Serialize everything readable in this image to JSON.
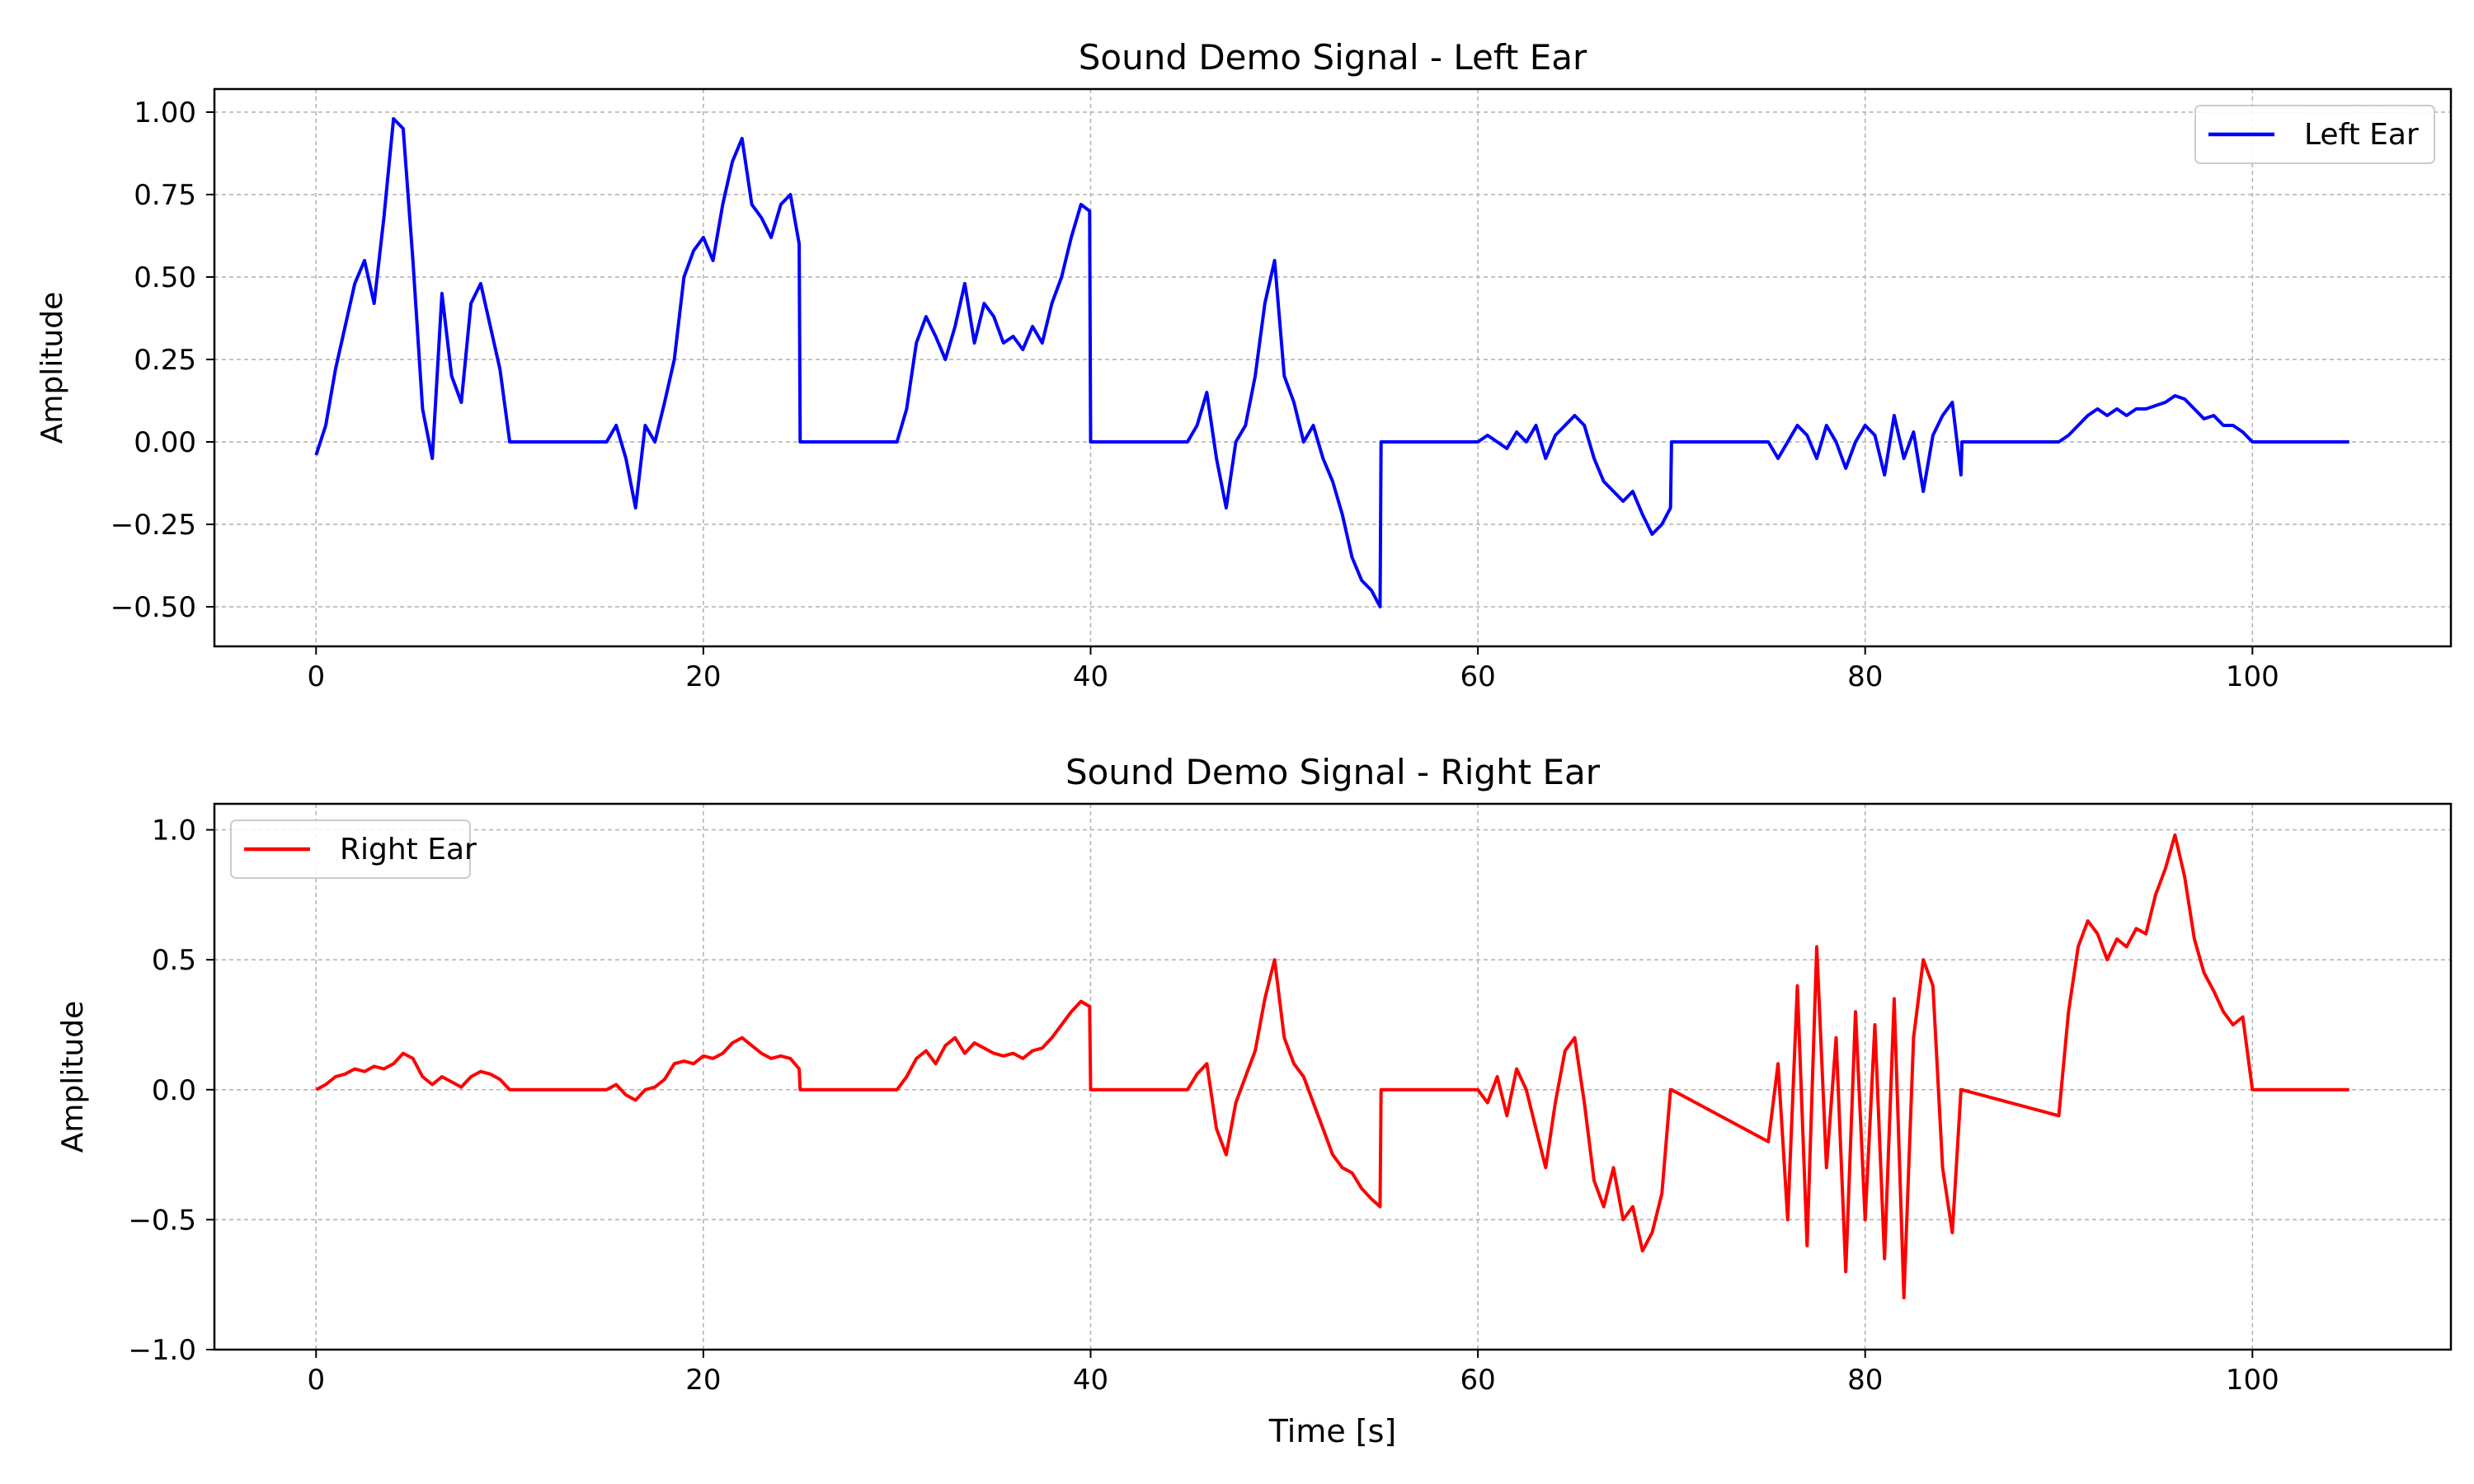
{
  "chart_data": [
    {
      "type": "line",
      "title": "Sound Demo Signal - Left Ear",
      "xlabel": "",
      "ylabel": "Amplitude",
      "xlim": [
        -5.25,
        110.25
      ],
      "ylim": [
        -0.62,
        1.07
      ],
      "xticks": [
        0,
        20,
        40,
        60,
        80,
        100
      ],
      "xtick_labels": [
        "0",
        "20",
        "40",
        "60",
        "80",
        "100"
      ],
      "yticks": [
        -0.5,
        -0.25,
        0.0,
        0.25,
        0.5,
        0.75,
        1.0
      ],
      "ytick_labels": [
        "−0.50",
        "−0.25",
        "0.00",
        "0.25",
        "0.50",
        "0.75",
        "1.00"
      ],
      "grid": true,
      "legend_position": "upper right",
      "series": [
        {
          "name": "Left Ear",
          "color": "#0000ff",
          "x": [
            0,
            0.5,
            1,
            1.5,
            2,
            2.5,
            3,
            3.5,
            4,
            4.5,
            5,
            5.5,
            6,
            6.5,
            7,
            7.5,
            8,
            8.5,
            9,
            9.5,
            10,
            15,
            15.5,
            16,
            16.5,
            17,
            17.5,
            18,
            18.5,
            19,
            19.5,
            20,
            20.5,
            21,
            21.5,
            22,
            22.5,
            23,
            23.5,
            24,
            24.5,
            24.95,
            25,
            30,
            30.5,
            31,
            31.5,
            32,
            32.5,
            33,
            33.5,
            34,
            34.5,
            35,
            35.5,
            36,
            36.5,
            37,
            37.5,
            38,
            38.5,
            39,
            39.5,
            39.95,
            40,
            45,
            45.5,
            46,
            46.5,
            47,
            47.5,
            48,
            48.5,
            49,
            49.5,
            50,
            50.5,
            51,
            51.5,
            52,
            52.5,
            53,
            53.5,
            54,
            54.5,
            54.95,
            55,
            60,
            60.5,
            61,
            61.5,
            62,
            62.5,
            63,
            63.5,
            64,
            64.5,
            65,
            65.5,
            66,
            66.5,
            67,
            67.5,
            68,
            68.5,
            69,
            69.5,
            69.95,
            70,
            75,
            75.5,
            76,
            76.5,
            77,
            77.5,
            78,
            78.5,
            79,
            79.5,
            80,
            80.5,
            81,
            81.5,
            82,
            82.5,
            83,
            83.5,
            84,
            84.5,
            84.95,
            85,
            90,
            90.5,
            91,
            91.5,
            92,
            92.5,
            93,
            93.5,
            94,
            94.5,
            95,
            95.5,
            96,
            96.5,
            97,
            97.5,
            98,
            98.5,
            99,
            99.5,
            100,
            105
          ],
          "y": [
            -0.04,
            0.05,
            0.22,
            0.35,
            0.48,
            0.55,
            0.42,
            0.68,
            0.98,
            0.95,
            0.55,
            0.1,
            -0.05,
            0.45,
            0.2,
            0.12,
            0.42,
            0.48,
            0.35,
            0.22,
            0.0,
            0.0,
            0.05,
            -0.05,
            -0.2,
            0.05,
            0.0,
            0.12,
            0.25,
            0.5,
            0.58,
            0.62,
            0.55,
            0.72,
            0.85,
            0.92,
            0.72,
            0.68,
            0.62,
            0.72,
            0.75,
            0.6,
            0.0,
            0.0,
            0.1,
            0.3,
            0.38,
            0.32,
            0.25,
            0.35,
            0.48,
            0.3,
            0.42,
            0.38,
            0.3,
            0.32,
            0.28,
            0.35,
            0.3,
            0.42,
            0.5,
            0.62,
            0.72,
            0.7,
            0.0,
            0.0,
            0.05,
            0.15,
            -0.05,
            -0.2,
            0.0,
            0.05,
            0.2,
            0.42,
            0.55,
            0.2,
            0.12,
            0.0,
            0.05,
            -0.05,
            -0.12,
            -0.22,
            -0.35,
            -0.42,
            -0.45,
            -0.5,
            0.0,
            0.0,
            0.02,
            0.0,
            -0.02,
            0.03,
            0.0,
            0.05,
            -0.05,
            0.02,
            0.05,
            0.08,
            0.05,
            -0.05,
            -0.12,
            -0.15,
            -0.18,
            -0.15,
            -0.22,
            -0.28,
            -0.25,
            -0.2,
            0.0,
            0.0,
            -0.05,
            0.0,
            0.05,
            0.02,
            -0.05,
            0.05,
            0.0,
            -0.08,
            0.0,
            0.05,
            0.02,
            -0.1,
            0.08,
            -0.05,
            0.03,
            -0.15,
            0.02,
            0.08,
            0.12,
            -0.1,
            0.0,
            0.0,
            0.02,
            0.05,
            0.08,
            0.1,
            0.08,
            0.1,
            0.08,
            0.1,
            0.1,
            0.11,
            0.12,
            0.14,
            0.13,
            0.1,
            0.07,
            0.08,
            0.05,
            0.05,
            0.03,
            0.0,
            0.0
          ]
        }
      ]
    },
    {
      "type": "line",
      "title": "Sound Demo Signal - Right Ear",
      "xlabel": "Time [s]",
      "ylabel": "Amplitude",
      "xlim": [
        -5.25,
        110.25
      ],
      "ylim": [
        -1.0,
        1.1
      ],
      "xticks": [
        0,
        20,
        40,
        60,
        80,
        100
      ],
      "xtick_labels": [
        "0",
        "20",
        "40",
        "60",
        "80",
        "100"
      ],
      "yticks": [
        -1.0,
        -0.5,
        0.0,
        0.5,
        1.0
      ],
      "ytick_labels": [
        "−1.0",
        "−0.5",
        "0.0",
        "0.5",
        "1.0"
      ],
      "grid": true,
      "legend_position": "upper left",
      "series": [
        {
          "name": "Right Ear",
          "color": "#ff0000",
          "x": [
            0,
            0.5,
            1,
            1.5,
            2,
            2.5,
            3,
            3.5,
            4,
            4.5,
            5,
            5.5,
            6,
            6.5,
            7,
            7.5,
            8,
            8.5,
            9,
            9.5,
            10,
            15,
            15.5,
            16,
            16.5,
            17,
            17.5,
            18,
            18.5,
            19,
            19.5,
            20,
            20.5,
            21,
            21.5,
            22,
            22.5,
            23,
            23.5,
            24,
            24.5,
            24.95,
            25,
            30,
            30.5,
            31,
            31.5,
            32,
            32.5,
            33,
            33.5,
            34,
            34.5,
            35,
            35.5,
            36,
            36.5,
            37,
            37.5,
            38,
            38.5,
            39,
            39.5,
            39.95,
            40,
            45,
            45.5,
            46,
            46.5,
            47,
            47.5,
            48,
            48.5,
            49,
            49.5,
            50,
            50.5,
            51,
            51.5,
            52,
            52.5,
            53,
            53.5,
            54,
            54.5,
            54.95,
            55,
            60,
            60.5,
            61,
            61.5,
            62,
            62.5,
            63,
            63.5,
            64,
            64.5,
            65,
            65.5,
            66,
            66.5,
            67,
            67.5,
            68,
            68.5,
            69,
            69.5,
            69.95,
            70,
            75,
            75.5,
            76,
            76.5,
            77,
            77.5,
            78,
            78.5,
            79,
            79.5,
            80,
            80.5,
            81,
            81.5,
            82,
            82.5,
            83,
            83.5,
            84,
            84.5,
            84.95,
            85,
            90,
            90.5,
            91,
            91.5,
            92,
            92.5,
            93,
            93.5,
            94,
            94.5,
            95,
            95.5,
            96,
            96.5,
            97,
            97.5,
            98,
            98.5,
            99,
            99.5,
            100,
            105
          ],
          "y": [
            0.0,
            0.02,
            0.05,
            0.06,
            0.08,
            0.07,
            0.09,
            0.08,
            0.1,
            0.14,
            0.12,
            0.05,
            0.02,
            0.05,
            0.03,
            0.01,
            0.05,
            0.07,
            0.06,
            0.04,
            0.0,
            0.0,
            0.02,
            -0.02,
            -0.04,
            0.0,
            0.01,
            0.04,
            0.1,
            0.11,
            0.1,
            0.13,
            0.12,
            0.14,
            0.18,
            0.2,
            0.17,
            0.14,
            0.12,
            0.13,
            0.12,
            0.08,
            0.0,
            0.0,
            0.05,
            0.12,
            0.15,
            0.1,
            0.17,
            0.2,
            0.14,
            0.18,
            0.16,
            0.14,
            0.13,
            0.14,
            0.12,
            0.15,
            0.16,
            0.2,
            0.25,
            0.3,
            0.34,
            0.32,
            0.0,
            0.0,
            0.06,
            0.1,
            -0.15,
            -0.25,
            -0.05,
            0.05,
            0.15,
            0.35,
            0.5,
            0.2,
            0.1,
            0.05,
            -0.05,
            -0.15,
            -0.25,
            -0.3,
            -0.32,
            -0.38,
            -0.42,
            -0.45,
            0.0,
            0.0,
            -0.05,
            0.05,
            -0.1,
            0.08,
            0.0,
            -0.15,
            -0.3,
            -0.05,
            0.15,
            0.2,
            -0.05,
            -0.35,
            -0.45,
            -0.3,
            -0.5,
            -0.45,
            -0.62,
            -0.55,
            -0.4,
            0.0,
            0.0,
            -0.2,
            0.1,
            -0.5,
            0.4,
            -0.6,
            0.55,
            -0.3,
            0.2,
            -0.7,
            0.3,
            -0.5,
            0.25,
            -0.65,
            0.35,
            -0.8,
            0.2,
            0.5,
            0.4,
            -0.3,
            -0.55,
            0.0,
            0.0,
            -0.1,
            0.3,
            0.55,
            0.65,
            0.6,
            0.5,
            0.58,
            0.55,
            0.62,
            0.6,
            0.75,
            0.85,
            0.98,
            0.82,
            0.58,
            0.45,
            0.38,
            0.3,
            0.25,
            0.28,
            0.0,
            0.0
          ]
        }
      ]
    }
  ]
}
